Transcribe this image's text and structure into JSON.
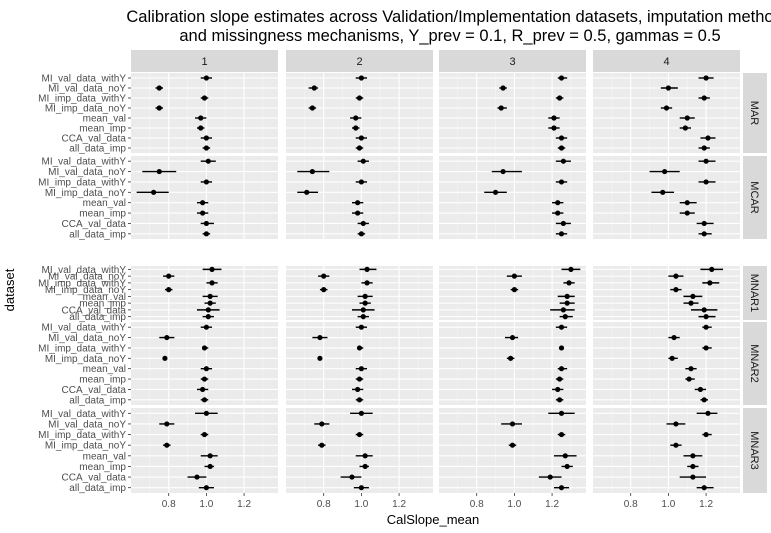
{
  "chart_data": {
    "type": "scatter",
    "title_line1": "Calibration slope estimates across Validation/Implementation datasets, imputation metho",
    "title_line2": "and missingness mechanisms, Y_prev = 0.1, R_prev = 0.5, gammas = 0.5",
    "xlabel": "CalSlope_mean",
    "ylabel": "dataset",
    "xlim": [
      0.6,
      1.38
    ],
    "xticks": [
      0.8,
      1.0,
      1.2
    ],
    "xtick_labels": [
      "0.8",
      "1.0",
      "1.2"
    ],
    "grid": true,
    "columns": [
      "1",
      "2",
      "3",
      "4"
    ],
    "rows": [
      "MAR",
      "MCAR",
      "MNAR1",
      "MNAR2",
      "MNAR3"
    ],
    "categories": [
      "MI_val_data_withY",
      "MI_val_data_noY",
      "MI_imp_data_withY",
      "MI_imp_data_noY",
      "mean_val",
      "mean_imp",
      "CCA_val_data",
      "all_data_imp"
    ],
    "panels": [
      [
        {
          "mean": [
            1.0,
            0.75,
            0.99,
            0.75,
            0.97,
            0.97,
            1.0,
            1.0
          ],
          "lo": [
            0.97,
            0.73,
            0.97,
            0.73,
            0.94,
            0.95,
            0.97,
            0.98
          ],
          "hi": [
            1.03,
            0.77,
            1.01,
            0.77,
            1.0,
            0.99,
            1.03,
            1.02
          ]
        },
        {
          "mean": [
            1.01,
            0.75,
            1.0,
            0.72,
            0.98,
            0.98,
            1.0,
            1.0
          ],
          "lo": [
            0.97,
            0.66,
            0.97,
            0.63,
            0.95,
            0.95,
            0.97,
            0.98
          ],
          "hi": [
            1.05,
            0.84,
            1.03,
            0.8,
            1.01,
            1.01,
            1.04,
            1.02
          ]
        },
        {
          "mean": [
            1.03,
            0.8,
            1.03,
            0.8,
            1.02,
            1.02,
            1.01,
            1.01
          ],
          "lo": [
            0.98,
            0.77,
            1.0,
            0.78,
            0.98,
            0.99,
            0.95,
            0.98
          ],
          "hi": [
            1.08,
            0.83,
            1.06,
            0.82,
            1.06,
            1.05,
            1.07,
            1.04
          ]
        },
        {
          "mean": [
            1.0,
            0.79,
            0.99,
            0.78,
            1.0,
            0.99,
            0.98,
            0.99
          ],
          "lo": [
            0.97,
            0.75,
            0.98,
            0.77,
            0.97,
            0.97,
            0.95,
            0.97
          ],
          "hi": [
            1.03,
            0.83,
            1.01,
            0.79,
            1.03,
            1.01,
            1.01,
            1.01
          ]
        },
        {
          "mean": [
            1.0,
            0.79,
            0.99,
            0.79,
            1.02,
            1.02,
            0.95,
            1.0
          ],
          "lo": [
            0.94,
            0.75,
            0.97,
            0.77,
            0.97,
            0.99,
            0.9,
            0.96
          ],
          "hi": [
            1.06,
            0.83,
            1.01,
            0.81,
            1.06,
            1.04,
            1.0,
            1.04
          ]
        }
      ],
      [
        {
          "mean": [
            1.0,
            0.75,
            0.99,
            0.74,
            0.97,
            0.97,
            1.0,
            0.99
          ],
          "lo": [
            0.97,
            0.72,
            0.97,
            0.72,
            0.94,
            0.95,
            0.97,
            0.97
          ],
          "hi": [
            1.03,
            0.77,
            1.01,
            0.76,
            1.0,
            0.99,
            1.03,
            1.01
          ]
        },
        {
          "mean": [
            1.01,
            0.74,
            1.0,
            0.71,
            0.98,
            0.98,
            1.01,
            1.0
          ],
          "lo": [
            0.98,
            0.66,
            0.97,
            0.66,
            0.95,
            0.95,
            0.98,
            0.98
          ],
          "hi": [
            1.04,
            0.83,
            1.03,
            0.77,
            1.01,
            1.01,
            1.04,
            1.02
          ]
        },
        {
          "mean": [
            1.03,
            0.8,
            1.03,
            0.8,
            1.02,
            1.02,
            1.01,
            1.01
          ],
          "lo": [
            0.99,
            0.77,
            1.0,
            0.78,
            0.98,
            0.99,
            0.95,
            0.98
          ],
          "hi": [
            1.08,
            0.83,
            1.06,
            0.82,
            1.06,
            1.05,
            1.07,
            1.04
          ]
        },
        {
          "mean": [
            1.0,
            0.78,
            0.99,
            0.78,
            1.0,
            0.99,
            0.98,
            0.99
          ],
          "lo": [
            0.97,
            0.74,
            0.98,
            0.77,
            0.97,
            0.97,
            0.95,
            0.97
          ],
          "hi": [
            1.03,
            0.82,
            1.01,
            0.79,
            1.03,
            1.01,
            1.01,
            1.01
          ]
        },
        {
          "mean": [
            1.0,
            0.79,
            0.99,
            0.79,
            1.02,
            1.02,
            0.95,
            1.0
          ],
          "lo": [
            0.94,
            0.75,
            0.97,
            0.77,
            0.97,
            0.99,
            0.89,
            0.96
          ],
          "hi": [
            1.06,
            0.83,
            1.01,
            0.81,
            1.06,
            1.04,
            1.0,
            1.04
          ]
        }
      ],
      [
        {
          "mean": [
            1.25,
            0.94,
            1.24,
            0.93,
            1.21,
            1.21,
            1.25,
            1.25
          ],
          "lo": [
            1.23,
            0.92,
            1.22,
            0.91,
            1.18,
            1.18,
            1.22,
            1.23
          ],
          "hi": [
            1.28,
            0.96,
            1.26,
            0.96,
            1.24,
            1.24,
            1.28,
            1.27
          ]
        },
        {
          "mean": [
            1.26,
            0.94,
            1.25,
            0.9,
            1.23,
            1.23,
            1.26,
            1.25
          ],
          "lo": [
            1.22,
            0.88,
            1.22,
            0.84,
            1.2,
            1.2,
            1.22,
            1.22
          ],
          "hi": [
            1.3,
            1.04,
            1.28,
            0.96,
            1.26,
            1.26,
            1.3,
            1.28
          ]
        },
        {
          "mean": [
            1.3,
            1.0,
            1.29,
            1.0,
            1.28,
            1.28,
            1.26,
            1.27
          ],
          "lo": [
            1.25,
            0.96,
            1.26,
            0.98,
            1.23,
            1.24,
            1.19,
            1.24
          ],
          "hi": [
            1.35,
            1.04,
            1.32,
            1.02,
            1.32,
            1.32,
            1.32,
            1.31
          ]
        },
        {
          "mean": [
            1.25,
            0.99,
            1.25,
            0.98,
            1.25,
            1.24,
            1.23,
            1.24
          ],
          "lo": [
            1.22,
            0.95,
            1.24,
            0.96,
            1.23,
            1.22,
            1.2,
            1.22
          ],
          "hi": [
            1.28,
            1.02,
            1.26,
            1.0,
            1.28,
            1.26,
            1.26,
            1.26
          ]
        },
        {
          "mean": [
            1.25,
            0.99,
            1.25,
            0.99,
            1.27,
            1.28,
            1.19,
            1.25
          ],
          "lo": [
            1.18,
            0.93,
            1.23,
            0.97,
            1.21,
            1.25,
            1.13,
            1.21
          ],
          "hi": [
            1.32,
            1.04,
            1.27,
            1.01,
            1.33,
            1.31,
            1.25,
            1.29
          ]
        }
      ],
      [
        {
          "mean": [
            1.2,
            1.0,
            1.19,
            0.99,
            1.1,
            1.09,
            1.21,
            1.19
          ],
          "lo": [
            1.16,
            0.96,
            1.16,
            0.96,
            1.06,
            1.06,
            1.17,
            1.16
          ],
          "hi": [
            1.24,
            1.05,
            1.22,
            1.02,
            1.14,
            1.12,
            1.25,
            1.22
          ]
        },
        {
          "mean": [
            1.2,
            0.98,
            1.2,
            0.97,
            1.1,
            1.1,
            1.19,
            1.19
          ],
          "lo": [
            1.16,
            0.9,
            1.16,
            0.91,
            1.06,
            1.06,
            1.15,
            1.16
          ],
          "hi": [
            1.25,
            1.06,
            1.25,
            1.03,
            1.15,
            1.14,
            1.24,
            1.23
          ]
        },
        {
          "mean": [
            1.23,
            1.04,
            1.22,
            1.04,
            1.13,
            1.12,
            1.19,
            1.2
          ],
          "lo": [
            1.17,
            1.0,
            1.18,
            1.01,
            1.08,
            1.08,
            1.12,
            1.16
          ],
          "hi": [
            1.29,
            1.08,
            1.27,
            1.07,
            1.18,
            1.16,
            1.26,
            1.25
          ]
        },
        {
          "mean": [
            1.2,
            1.03,
            1.2,
            1.02,
            1.12,
            1.11,
            1.17,
            1.19
          ],
          "lo": [
            1.18,
            1.0,
            1.18,
            1.0,
            1.09,
            1.09,
            1.14,
            1.17
          ],
          "hi": [
            1.23,
            1.06,
            1.23,
            1.05,
            1.15,
            1.14,
            1.2,
            1.21
          ]
        },
        {
          "mean": [
            1.21,
            1.04,
            1.2,
            1.04,
            1.13,
            1.13,
            1.13,
            1.19
          ],
          "lo": [
            1.15,
            0.99,
            1.18,
            1.01,
            1.08,
            1.1,
            1.06,
            1.15
          ],
          "hi": [
            1.26,
            1.09,
            1.23,
            1.07,
            1.18,
            1.16,
            1.2,
            1.24
          ]
        }
      ]
    ]
  }
}
